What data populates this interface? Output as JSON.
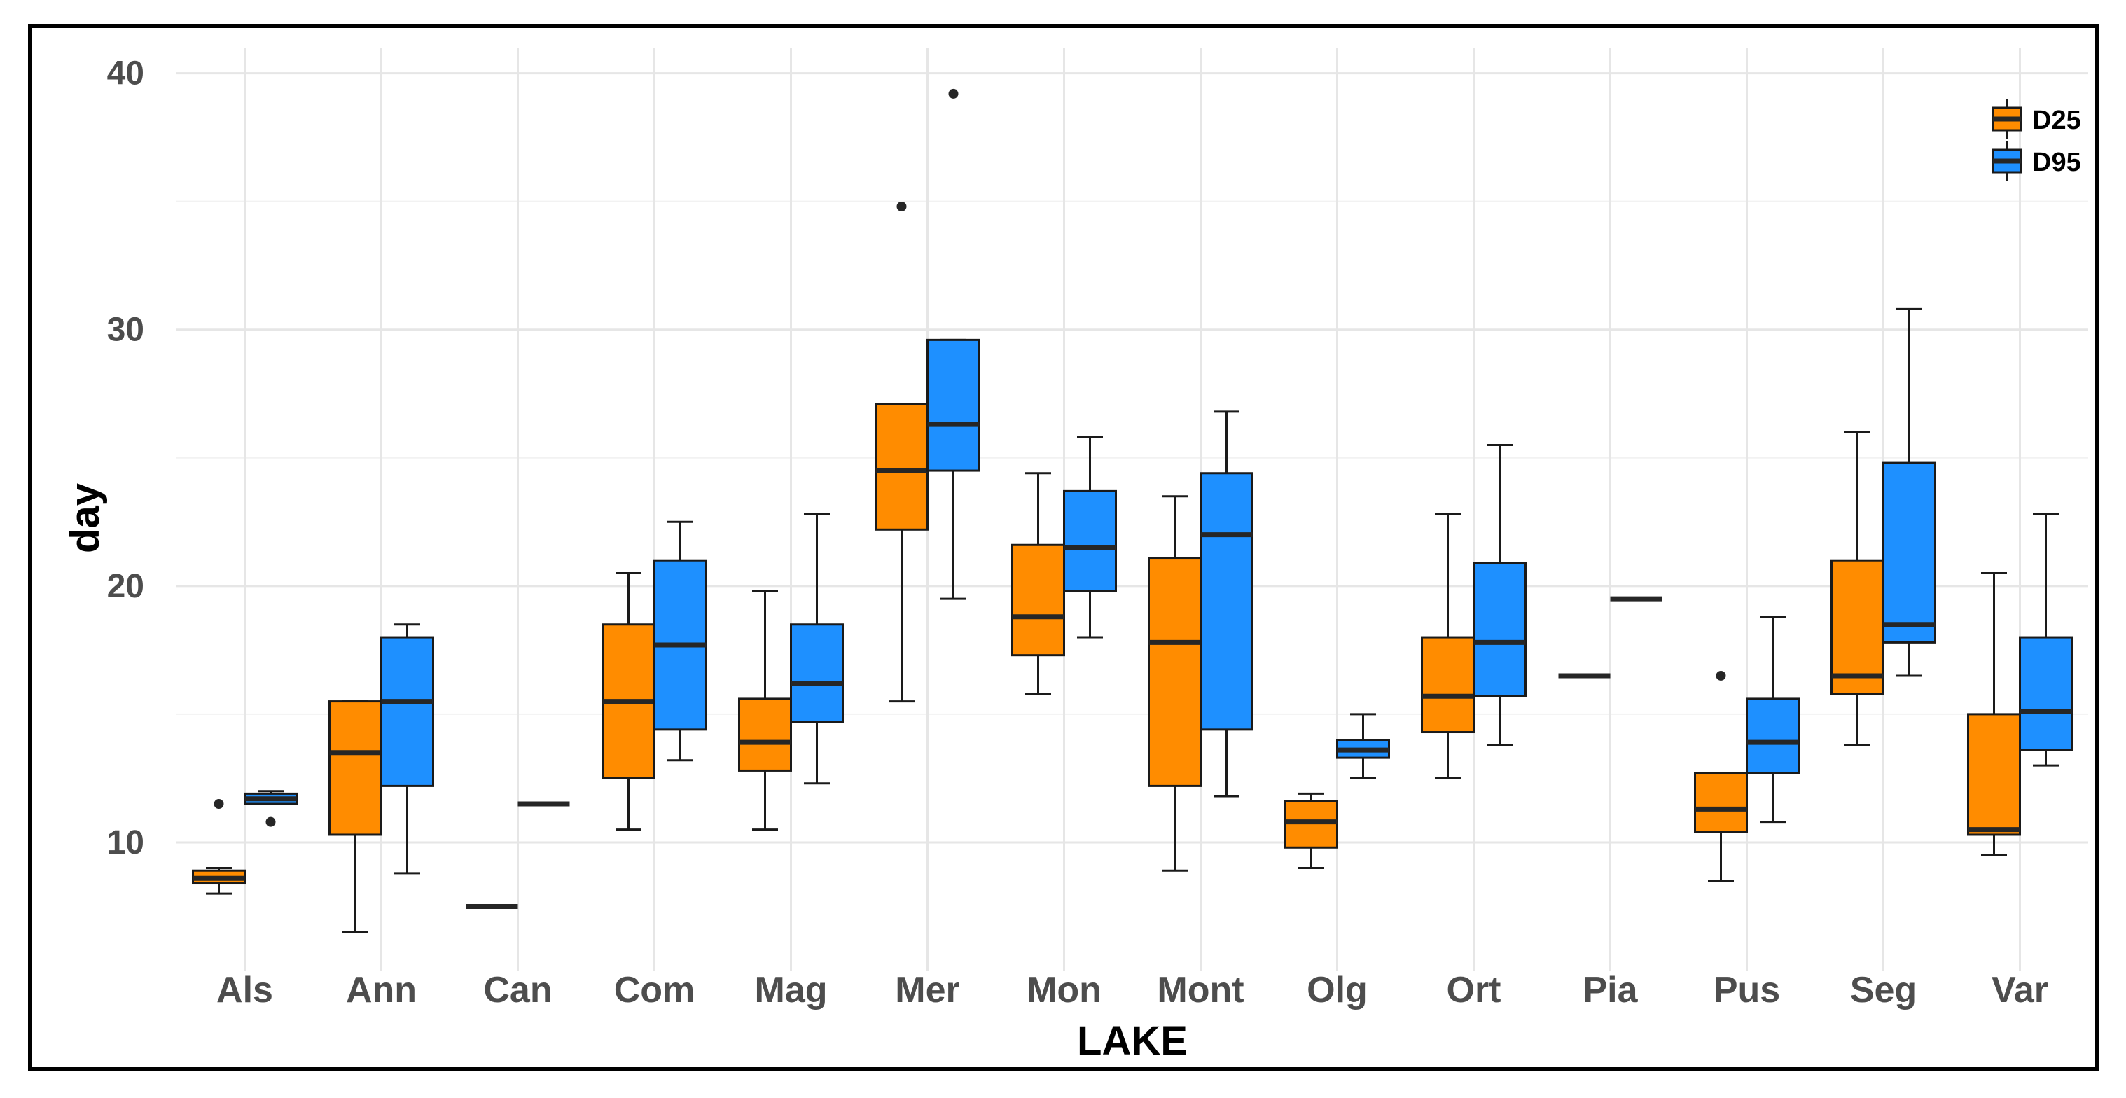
{
  "chart_data": {
    "type": "boxplot",
    "xlabel": "LAKE",
    "ylabel": "day",
    "ylim": [
      5,
      41
    ],
    "yticks": [
      10,
      20,
      30,
      40
    ],
    "categories": [
      "Als",
      "Ann",
      "Can",
      "Com",
      "Mag",
      "Mer",
      "Mon",
      "Mont",
      "Olg",
      "Ort",
      "Pia",
      "Pus",
      "Seg",
      "Var"
    ],
    "legend": {
      "position": "top-right",
      "entries": [
        "D25",
        "D95"
      ]
    },
    "series": [
      {
        "name": "D25",
        "color": "#ff8c00",
        "boxes": [
          {
            "min": 8.0,
            "q1": 8.4,
            "median": 8.6,
            "q3": 8.9,
            "max": 9.0,
            "outliers": [
              11.5
            ]
          },
          {
            "min": 6.5,
            "q1": 10.3,
            "median": 13.5,
            "q3": 15.5,
            "max": 15.5,
            "outliers": []
          },
          {
            "min": 7.5,
            "q1": 7.5,
            "median": 7.5,
            "q3": 7.5,
            "max": 7.5,
            "outliers": []
          },
          {
            "min": 10.5,
            "q1": 12.5,
            "median": 15.5,
            "q3": 18.5,
            "max": 20.5,
            "outliers": []
          },
          {
            "min": 10.5,
            "q1": 12.8,
            "median": 13.9,
            "q3": 15.6,
            "max": 19.8,
            "outliers": []
          },
          {
            "min": 15.5,
            "q1": 22.2,
            "median": 24.5,
            "q3": 27.1,
            "max": 27.1,
            "outliers": [
              34.8
            ]
          },
          {
            "min": 15.8,
            "q1": 17.3,
            "median": 18.8,
            "q3": 21.6,
            "max": 24.4,
            "outliers": []
          },
          {
            "min": 8.9,
            "q1": 12.2,
            "median": 17.8,
            "q3": 21.1,
            "max": 23.5,
            "outliers": []
          },
          {
            "min": 9.0,
            "q1": 9.8,
            "median": 10.8,
            "q3": 11.6,
            "max": 11.9,
            "outliers": []
          },
          {
            "min": 12.5,
            "q1": 14.3,
            "median": 15.7,
            "q3": 18.0,
            "max": 22.8,
            "outliers": []
          },
          {
            "min": 16.5,
            "q1": 16.5,
            "median": 16.5,
            "q3": 16.5,
            "max": 16.5,
            "outliers": []
          },
          {
            "min": 8.5,
            "q1": 10.4,
            "median": 11.3,
            "q3": 12.7,
            "max": 12.7,
            "outliers": [
              16.5
            ]
          },
          {
            "min": 13.8,
            "q1": 15.8,
            "median": 16.5,
            "q3": 21.0,
            "max": 26.0,
            "outliers": []
          },
          {
            "min": 9.5,
            "q1": 10.3,
            "median": 10.5,
            "q3": 15.0,
            "max": 20.5,
            "outliers": []
          }
        ]
      },
      {
        "name": "D95",
        "color": "#1e90ff",
        "boxes": [
          {
            "min": 11.5,
            "q1": 11.5,
            "median": 11.7,
            "q3": 11.9,
            "max": 12.0,
            "outliers": [
              10.8
            ]
          },
          {
            "min": 8.8,
            "q1": 12.2,
            "median": 15.5,
            "q3": 18.0,
            "max": 18.5,
            "outliers": []
          },
          {
            "min": 11.5,
            "q1": 11.5,
            "median": 11.5,
            "q3": 11.5,
            "max": 11.5,
            "outliers": []
          },
          {
            "min": 13.2,
            "q1": 14.4,
            "median": 17.7,
            "q3": 21.0,
            "max": 22.5,
            "outliers": []
          },
          {
            "min": 12.3,
            "q1": 14.7,
            "median": 16.2,
            "q3": 18.5,
            "max": 22.8,
            "outliers": []
          },
          {
            "min": 19.5,
            "q1": 24.5,
            "median": 26.3,
            "q3": 29.6,
            "max": 29.6,
            "outliers": [
              39.2
            ]
          },
          {
            "min": 18.0,
            "q1": 19.8,
            "median": 21.5,
            "q3": 23.7,
            "max": 25.8,
            "outliers": []
          },
          {
            "min": 11.8,
            "q1": 14.4,
            "median": 22.0,
            "q3": 24.4,
            "max": 26.8,
            "outliers": []
          },
          {
            "min": 12.5,
            "q1": 13.3,
            "median": 13.6,
            "q3": 14.0,
            "max": 15.0,
            "outliers": []
          },
          {
            "min": 13.8,
            "q1": 15.7,
            "median": 17.8,
            "q3": 20.9,
            "max": 25.5,
            "outliers": []
          },
          {
            "min": 19.5,
            "q1": 19.5,
            "median": 19.5,
            "q3": 19.5,
            "max": 19.5,
            "outliers": []
          },
          {
            "min": 10.8,
            "q1": 12.7,
            "median": 13.9,
            "q3": 15.6,
            "max": 18.8,
            "outliers": []
          },
          {
            "min": 16.5,
            "q1": 17.8,
            "median": 18.5,
            "q3": 24.8,
            "max": 30.8,
            "outliers": []
          },
          {
            "min": 13.0,
            "q1": 13.6,
            "median": 15.1,
            "q3": 18.0,
            "max": 22.8,
            "outliers": []
          }
        ]
      }
    ]
  }
}
